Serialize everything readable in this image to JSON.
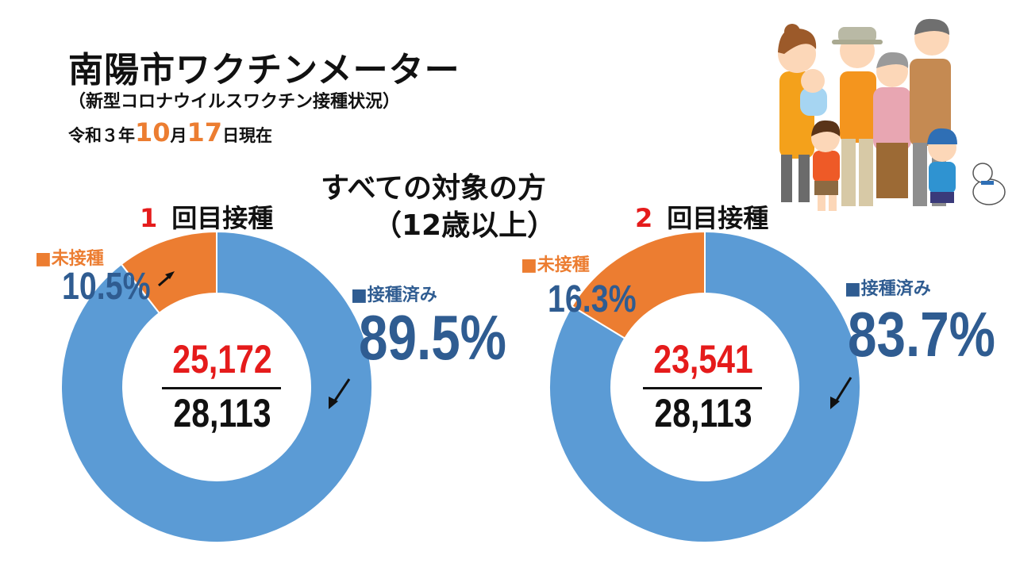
{
  "header": {
    "title": "南陽市ワクチンメーター",
    "subtitle": "（新型コロナウイルスワクチン接種状況）",
    "date_prefix": "令和３年",
    "date_month": "10",
    "date_month_unit": "月",
    "date_day": "17",
    "date_suffix": "日現在"
  },
  "target": {
    "line1": "すべての対象の方",
    "line2": "（12歳以上）"
  },
  "colors": {
    "vaccinated": "#5b9bd5",
    "unvaccinated": "#ec7d31",
    "accent_red": "#e51b1b",
    "text_blue": "#2f5c91"
  },
  "chart_data": [
    {
      "type": "pie",
      "donut": true,
      "title_number": "1",
      "title": "回目接種",
      "slices": [
        {
          "label": "■接種済み",
          "value": 89.5,
          "label_text": "89.5%",
          "color": "#5b9bd5"
        },
        {
          "label": "■未接種",
          "value": 10.5,
          "label_text": "10.5%",
          "color": "#ec7d31"
        }
      ],
      "vaccinated_count": "25,172",
      "total_count": "28,113"
    },
    {
      "type": "pie",
      "donut": true,
      "title_number": "2",
      "title": "回目接種",
      "slices": [
        {
          "label": "■接種済み",
          "value": 83.7,
          "label_text": "83.7%",
          "color": "#5b9bd5"
        },
        {
          "label": "■未接種",
          "value": 16.3,
          "label_text": "16.3%",
          "color": "#ec7d31"
        }
      ],
      "vaccinated_count": "23,541",
      "total_count": "28,113"
    }
  ]
}
